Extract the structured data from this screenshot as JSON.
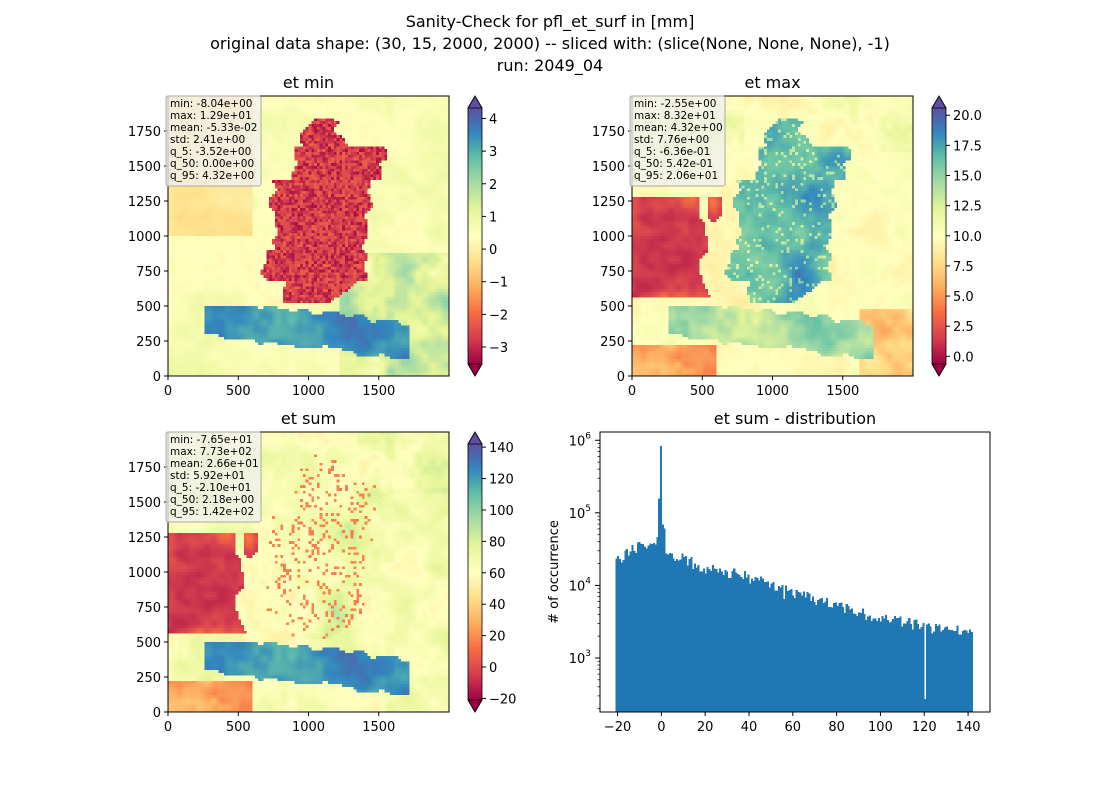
{
  "figure": {
    "title_lines": [
      "Sanity-Check for pfl_et_surf in [mm]",
      "original data shape: (30, 15, 2000, 2000) -- sliced with: (slice(None, None, None), -1)",
      "run: 2049_04"
    ]
  },
  "colors": {
    "colormap": "Spectral",
    "colormap_stops": [
      "#9e0142",
      "#d53e4f",
      "#f46d43",
      "#fdae61",
      "#fee08b",
      "#ffffbf",
      "#e6f598",
      "#abdda4",
      "#66c2a5",
      "#3288bd",
      "#5e4fa2"
    ],
    "histogram_bar": "#1f77b4",
    "stats_box_bg": "#f0f0f0"
  },
  "chart_data": [
    {
      "type": "heatmap",
      "title": "et min",
      "xlim": [
        0,
        2000
      ],
      "ylim": [
        0,
        2000
      ],
      "x_ticks": [
        "0",
        "500",
        "1000",
        "1500"
      ],
      "y_ticks": [
        "0",
        "250",
        "500",
        "750",
        "1000",
        "1250",
        "1500",
        "1750"
      ],
      "colorbar": {
        "range": [
          -3.52,
          4.32
        ],
        "ticks": [
          "−3",
          "−2",
          "−1",
          "0",
          "1",
          "2",
          "3",
          "4"
        ],
        "extend": "both"
      },
      "stats": [
        "min: -8.04e+00",
        "max: 1.29e+01",
        "mean: -5.33e-02",
        "std: 2.41e+00",
        "q_5: -3.52e+00",
        "q_50: 0.00e+00",
        "q_95: 4.32e+00"
      ]
    },
    {
      "type": "heatmap",
      "title": "et max",
      "xlim": [
        0,
        2000
      ],
      "ylim": [
        0,
        2000
      ],
      "x_ticks": [
        "0",
        "500",
        "1000",
        "1500"
      ],
      "y_ticks": [
        "0",
        "250",
        "500",
        "750",
        "1000",
        "1250",
        "1500",
        "1750"
      ],
      "colorbar": {
        "range": [
          -0.636,
          20.6
        ],
        "ticks": [
          "0.0",
          "2.5",
          "5.0",
          "7.5",
          "10.0",
          "12.5",
          "15.0",
          "17.5",
          "20.0"
        ],
        "extend": "both"
      },
      "stats": [
        "min: -2.55e+00",
        "max: 8.32e+01",
        "mean: 4.32e+00",
        "std: 7.76e+00",
        "q_5: -6.36e-01",
        "q_50: 5.42e-01",
        "q_95: 2.06e+01"
      ]
    },
    {
      "type": "heatmap",
      "title": "et sum",
      "xlim": [
        0,
        2000
      ],
      "ylim": [
        0,
        2000
      ],
      "x_ticks": [
        "0",
        "500",
        "1000",
        "1500"
      ],
      "y_ticks": [
        "0",
        "250",
        "500",
        "750",
        "1000",
        "1250",
        "1500",
        "1750"
      ],
      "colorbar": {
        "range": [
          -21.0,
          142
        ],
        "ticks": [
          "−20",
          "0",
          "20",
          "40",
          "60",
          "80",
          "100",
          "120",
          "140"
        ],
        "extend": "both"
      },
      "stats": [
        "min: -7.65e+01",
        "max: 7.73e+02",
        "mean: 2.66e+01",
        "std: 5.92e+01",
        "q_5: -2.10e+01",
        "q_50: 2.18e+00",
        "q_95: 1.42e+02"
      ]
    },
    {
      "type": "bar",
      "title": "et sum - distribution",
      "xlabel": "",
      "ylabel": "# of occurrence",
      "yscale": "log",
      "x_ticks": [
        "−20",
        "0",
        "20",
        "40",
        "60",
        "80",
        "100",
        "120",
        "140"
      ],
      "y_ticks": [
        "10^3",
        "10^4",
        "10^5",
        "10^6"
      ],
      "xlim": [
        -28,
        150
      ],
      "ylim": [
        180,
        1300000
      ],
      "bin_range": [
        -21.0,
        142
      ],
      "profile": [
        [
          -21,
          22000
        ],
        [
          -15,
          28000
        ],
        [
          -8,
          40000
        ],
        [
          -2,
          36000
        ],
        [
          0,
          830000
        ],
        [
          2,
          26000
        ],
        [
          10,
          23000
        ],
        [
          20,
          17500
        ],
        [
          30,
          15500
        ],
        [
          40,
          13000
        ],
        [
          50,
          10000
        ],
        [
          60,
          8000
        ],
        [
          70,
          6500
        ],
        [
          80,
          5200
        ],
        [
          90,
          4300
        ],
        [
          100,
          3600
        ],
        [
          110,
          3200
        ],
        [
          120,
          2700
        ],
        [
          130,
          2500
        ],
        [
          142,
          2200
        ]
      ],
      "spike": {
        "x": -0.3,
        "value": 830000
      },
      "dips": [
        {
          "x": 120,
          "value": 270
        },
        {
          "x": 56,
          "value": 6500
        }
      ]
    }
  ]
}
